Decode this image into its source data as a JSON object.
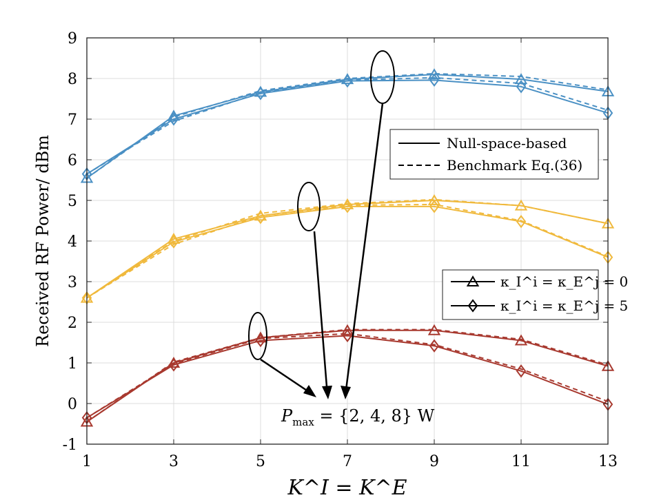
{
  "chart_data": {
    "type": "line",
    "xlabel": "K^I = K^E",
    "ylabel": "Received RF Power/ dBm",
    "x": [
      1,
      3,
      5,
      7,
      9,
      11,
      13
    ],
    "xlim": [
      1,
      13
    ],
    "ylim": [
      -1,
      9
    ],
    "xticks": [
      "1",
      "3",
      "5",
      "7",
      "9",
      "11",
      "13"
    ],
    "yticks": [
      "-1",
      "0",
      "1",
      "2",
      "3",
      "4",
      "5",
      "6",
      "7",
      "8",
      "9"
    ],
    "grid": true,
    "legend_style": {
      "position": "right-middle-upper",
      "items": [
        {
          "label": "Null-space-based",
          "dash": "solid"
        },
        {
          "label": "Benchmark Eq.(36)",
          "dash": "dashed"
        }
      ]
    },
    "legend_marker": {
      "position": "right-middle",
      "items": [
        {
          "label": "κ_I^i = κ_E^j = 0",
          "marker": "triangle"
        },
        {
          "label": "κ_I^i = κ_E^j = 5",
          "marker": "diamond"
        }
      ]
    },
    "annotation": {
      "prefix": "P",
      "subscript": "max",
      "suffix": " = {2, 4, 8} W"
    },
    "series": [
      {
        "name": "8 W, κ=0, Null-space-based",
        "color": "#4a90c4",
        "dash": "solid",
        "marker": "triangle",
        "values": [
          5.55,
          7.08,
          7.67,
          7.98,
          8.1,
          7.98,
          7.68
        ]
      },
      {
        "name": "8 W, κ=0, Benchmark",
        "color": "#4a90c4",
        "dash": "dashed",
        "marker": "triangle",
        "values": [
          5.55,
          7.05,
          7.7,
          8.0,
          8.12,
          8.05,
          7.72
        ]
      },
      {
        "name": "8 W, κ=5, Null-space-based",
        "color": "#4a90c4",
        "dash": "solid",
        "marker": "diamond",
        "values": [
          5.65,
          7.0,
          7.63,
          7.94,
          7.96,
          7.8,
          7.15
        ]
      },
      {
        "name": "8 W, κ=5, Benchmark",
        "color": "#4a90c4",
        "dash": "dashed",
        "marker": "diamond",
        "values": [
          5.65,
          6.95,
          7.65,
          7.96,
          8.02,
          7.88,
          7.22
        ]
      },
      {
        "name": "4 W, κ=0, Null-space-based",
        "color": "#f0b93c",
        "dash": "solid",
        "marker": "triangle",
        "values": [
          2.6,
          4.05,
          4.62,
          4.9,
          5.0,
          4.87,
          4.43
        ]
      },
      {
        "name": "4 W, κ=0, Benchmark",
        "color": "#f0b93c",
        "dash": "dashed",
        "marker": "triangle",
        "values": [
          2.6,
          4.0,
          4.68,
          4.92,
          5.02,
          4.87,
          4.43
        ]
      },
      {
        "name": "4 W, κ=5, Null-space-based",
        "color": "#f0b93c",
        "dash": "solid",
        "marker": "diamond",
        "values": [
          2.6,
          3.98,
          4.58,
          4.85,
          4.85,
          4.48,
          3.6
        ]
      },
      {
        "name": "4 W, κ=5, Benchmark",
        "color": "#f0b93c",
        "dash": "dashed",
        "marker": "diamond",
        "values": [
          2.6,
          3.92,
          4.62,
          4.88,
          4.9,
          4.5,
          3.62
        ]
      },
      {
        "name": "2 W, κ=0, Null-space-based",
        "color": "#a8392f",
        "dash": "solid",
        "marker": "triangle",
        "values": [
          -0.45,
          1.0,
          1.62,
          1.8,
          1.8,
          1.55,
          0.92
        ]
      },
      {
        "name": "2 W, κ=0, Benchmark",
        "color": "#a8392f",
        "dash": "dashed",
        "marker": "triangle",
        "values": [
          -0.45,
          1.02,
          1.62,
          1.82,
          1.82,
          1.58,
          0.95
        ]
      },
      {
        "name": "2 W, κ=5, Null-space-based",
        "color": "#a8392f",
        "dash": "solid",
        "marker": "diamond",
        "values": [
          -0.35,
          0.95,
          1.55,
          1.67,
          1.42,
          0.8,
          -0.02
        ]
      },
      {
        "name": "2 W, κ=5, Benchmark",
        "color": "#a8392f",
        "dash": "dashed",
        "marker": "diamond",
        "values": [
          -0.35,
          0.98,
          1.6,
          1.72,
          1.45,
          0.85,
          0.05
        ]
      }
    ]
  }
}
